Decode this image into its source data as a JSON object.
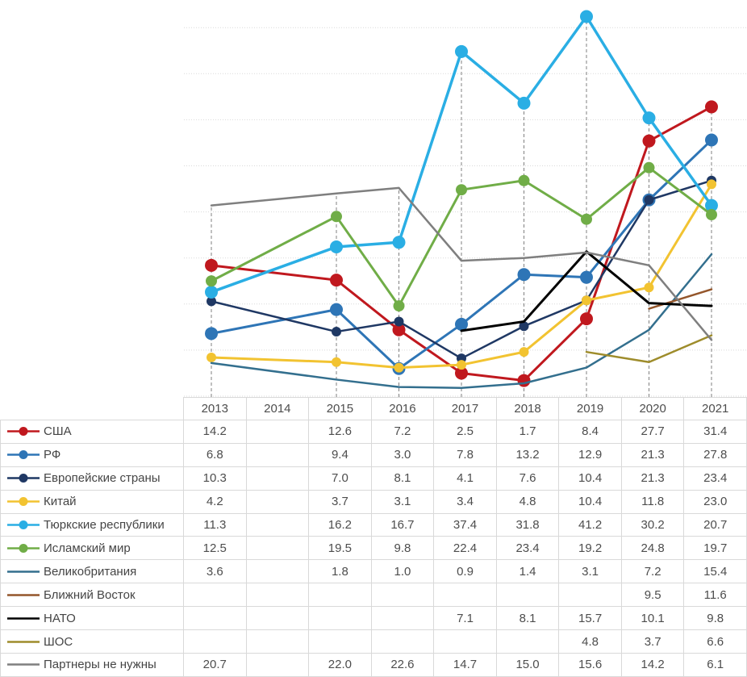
{
  "chart_data": {
    "type": "line",
    "title": "",
    "xlabel": "",
    "ylabel": "",
    "categories": [
      "2013",
      "2014",
      "2015",
      "2016",
      "2017",
      "2018",
      "2019",
      "2020",
      "2021"
    ],
    "series": [
      {
        "name": "США",
        "color": "#c0181e",
        "marker": true,
        "marker_radius": 8,
        "line_width": 3,
        "values": [
          14.2,
          null,
          12.6,
          7.2,
          2.5,
          1.7,
          8.4,
          27.7,
          31.4
        ]
      },
      {
        "name": "РФ",
        "color": "#2e75b6",
        "marker": true,
        "marker_radius": 8,
        "line_width": 3,
        "values": [
          6.8,
          null,
          9.4,
          3.0,
          7.8,
          13.2,
          12.9,
          21.3,
          27.8
        ]
      },
      {
        "name": "Европейские страны",
        "color": "#1f3864",
        "marker": true,
        "marker_radius": 6,
        "line_width": 2.5,
        "values": [
          10.3,
          null,
          7.0,
          8.1,
          4.1,
          7.6,
          10.4,
          21.3,
          23.4
        ]
      },
      {
        "name": "Китай",
        "color": "#f2c331",
        "marker": true,
        "marker_radius": 6,
        "line_width": 3,
        "values": [
          4.2,
          null,
          3.7,
          3.1,
          3.4,
          4.8,
          10.4,
          11.8,
          23.0
        ]
      },
      {
        "name": "Тюркские республики",
        "color": "#2aaee4",
        "marker": true,
        "marker_radius": 8,
        "line_width": 3.5,
        "values": [
          11.3,
          null,
          16.2,
          16.7,
          37.4,
          31.8,
          41.2,
          30.2,
          20.7
        ]
      },
      {
        "name": "Исламский мир",
        "color": "#70ad47",
        "marker": true,
        "marker_radius": 7,
        "line_width": 3,
        "values": [
          12.5,
          null,
          19.5,
          9.8,
          22.4,
          23.4,
          19.2,
          24.8,
          19.7
        ]
      },
      {
        "name": "Великобритания",
        "color": "#336f8e",
        "marker": false,
        "marker_radius": 0,
        "line_width": 2.5,
        "values": [
          3.6,
          null,
          1.8,
          1.0,
          0.9,
          1.4,
          3.1,
          7.2,
          15.4
        ]
      },
      {
        "name": "Ближний Восток",
        "color": "#94562b",
        "marker": false,
        "marker_radius": 0,
        "line_width": 2.5,
        "values": [
          null,
          null,
          null,
          null,
          null,
          null,
          null,
          9.5,
          11.6
        ]
      },
      {
        "name": "НАТО",
        "color": "#000000",
        "marker": false,
        "marker_radius": 0,
        "line_width": 3,
        "values": [
          null,
          null,
          null,
          null,
          7.1,
          8.1,
          15.7,
          10.1,
          9.8
        ]
      },
      {
        "name": "ШОС",
        "color": "#9e8c2b",
        "marker": false,
        "marker_radius": 0,
        "line_width": 2.5,
        "values": [
          null,
          null,
          null,
          null,
          null,
          null,
          4.8,
          3.7,
          6.6
        ]
      },
      {
        "name": "Партнеры не нужны",
        "color": "#7f7f7f",
        "marker": false,
        "marker_radius": 0,
        "line_width": 2.5,
        "values": [
          20.7,
          null,
          22.0,
          22.6,
          14.7,
          15.0,
          15.6,
          14.2,
          6.1
        ]
      }
    ],
    "ylim": [
      0,
      42.8
    ],
    "gridline_step": 5,
    "grid": true,
    "gridline_color": "#d9d9d9",
    "drop_lines": true,
    "drop_line_color": "#808080",
    "legend_position": "table-left",
    "value_decimals": 1
  }
}
